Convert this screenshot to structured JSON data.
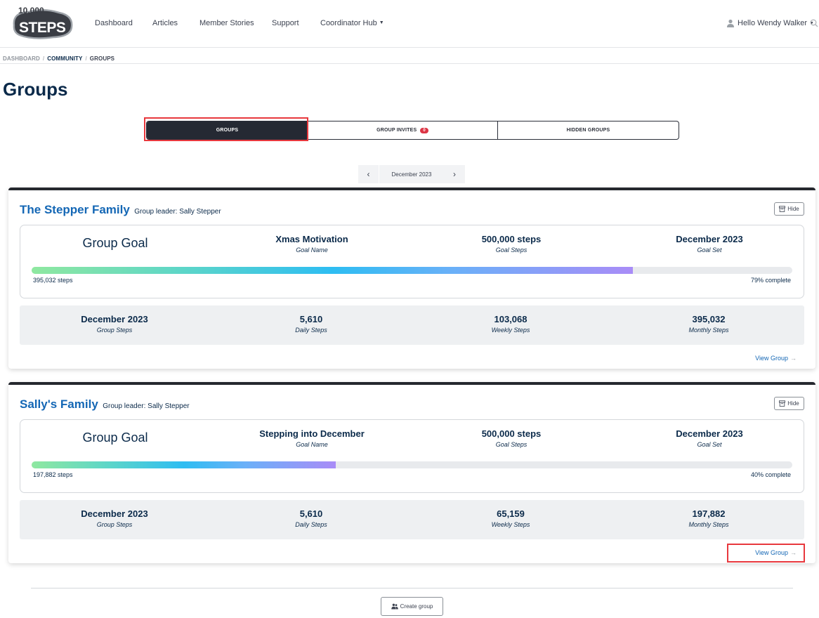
{
  "header": {
    "logo_text": "10,000 STEPS",
    "nav": [
      "Dashboard",
      "Articles",
      "Member Stories",
      "Support",
      "Coordinator Hub"
    ],
    "user_greeting": "Hello Wendy Walker",
    "icons": {
      "user": "user-icon",
      "search": "search-icon",
      "caret": "chevron-down-icon"
    }
  },
  "breadcrumb": {
    "dashboard": "DASHBOARD",
    "community": "COMMUNITY",
    "groups": "GROUPS",
    "separator": "/"
  },
  "page_title": "Groups",
  "tabs": {
    "groups": "GROUPS",
    "invites": "GROUP INVITES",
    "invites_count": "0",
    "hidden": "HIDDEN GROUPS"
  },
  "month_picker": {
    "label": "December 2023",
    "prev_icon": "chevron-left-icon",
    "next_icon": "chevron-right-icon"
  },
  "groups": [
    {
      "name": "The Stepper Family",
      "leader": "Group leader: Sally Stepper",
      "hide_label": "Hide",
      "goal_title": "Group Goal",
      "goal_name": "Xmas Motivation",
      "goal_name_label": "Goal Name",
      "goal_steps": "500,000 steps",
      "goal_steps_label": "Goal Steps",
      "goal_set": "December 2023",
      "goal_set_label": "Goal Set",
      "progress_fraction": 0.79,
      "steps_text": "395,032 steps",
      "complete_text": "79% complete",
      "stats": [
        {
          "value": "December 2023",
          "label": "Group Steps"
        },
        {
          "value": "5,610",
          "label": "Daily Steps"
        },
        {
          "value": "103,068",
          "label": "Weekly Steps"
        },
        {
          "value": "395,032",
          "label": "Monthly Steps"
        }
      ],
      "view_label": "View Group"
    },
    {
      "name": "Sally's Family",
      "leader": "Group leader: Sally Stepper",
      "hide_label": "Hide",
      "goal_title": "Group Goal",
      "goal_name": "Stepping into December",
      "goal_name_label": "Goal Name",
      "goal_steps": "500,000 steps",
      "goal_steps_label": "Goal Steps",
      "goal_set": "December 2023",
      "goal_set_label": "Goal Set",
      "progress_fraction": 0.4,
      "steps_text": "197,882 steps",
      "complete_text": "40% complete",
      "stats": [
        {
          "value": "December 2023",
          "label": "Group Steps"
        },
        {
          "value": "5,610",
          "label": "Daily Steps"
        },
        {
          "value": "65,159",
          "label": "Weekly Steps"
        },
        {
          "value": "197,882",
          "label": "Monthly Steps"
        }
      ],
      "view_label": "View Group"
    }
  ],
  "create_group_label": "Create group",
  "colors": {
    "link_blue": "#1467b5",
    "navy": "#0b2a4a",
    "tab_active": "#252933",
    "badge_red": "#dc3545",
    "highlight": "#e8383d"
  }
}
